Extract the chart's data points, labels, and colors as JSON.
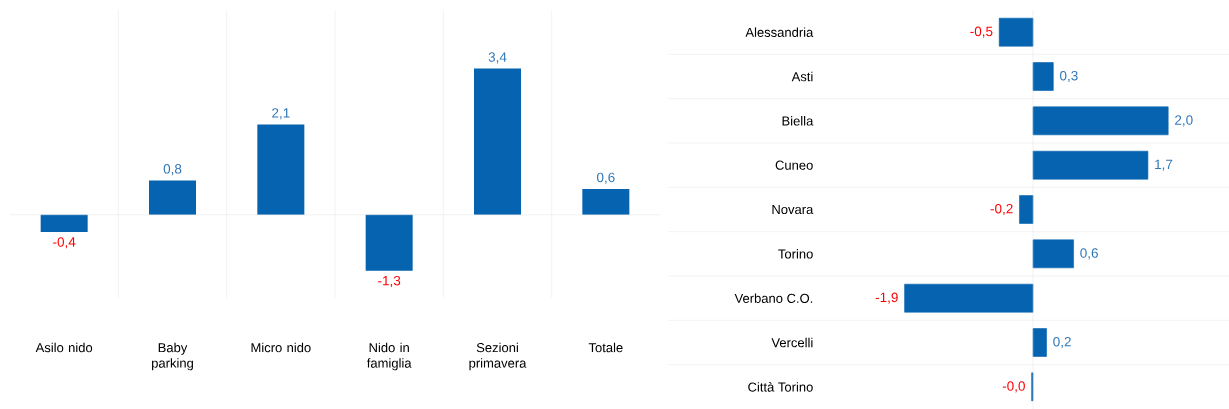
{
  "chart_data": [
    {
      "type": "bar",
      "categories": [
        "Asilo nido",
        "Baby parking",
        "Micro nido",
        "Nido in famiglia",
        "Sezioni primavera",
        "Totale"
      ],
      "values": [
        -0.4,
        0.8,
        2.1,
        -1.3,
        3.4,
        0.6
      ],
      "value_labels": [
        "-0,4",
        "0,8",
        "2,1",
        "-1,3",
        "3,4",
        "0,6"
      ],
      "color": "#0563b0",
      "grid": "x"
    },
    {
      "type": "bar",
      "orientation": "horizontal",
      "categories": [
        "Alessandria",
        "Asti",
        "Biella",
        "Cuneo",
        "Novara",
        "Torino",
        "Verbano C.O.",
        "Vercelli",
        "Città Torino"
      ],
      "values": [
        -0.5,
        0.3,
        2.0,
        1.7,
        -0.2,
        0.6,
        -1.9,
        0.2,
        -0.02
      ],
      "value_labels": [
        "-0,5",
        "0,3",
        "2,0",
        "1,7",
        "-0,2",
        "0,6",
        "-1,9",
        "0,2",
        "-0,0"
      ],
      "color": "#0563b0",
      "grid": "y"
    }
  ]
}
